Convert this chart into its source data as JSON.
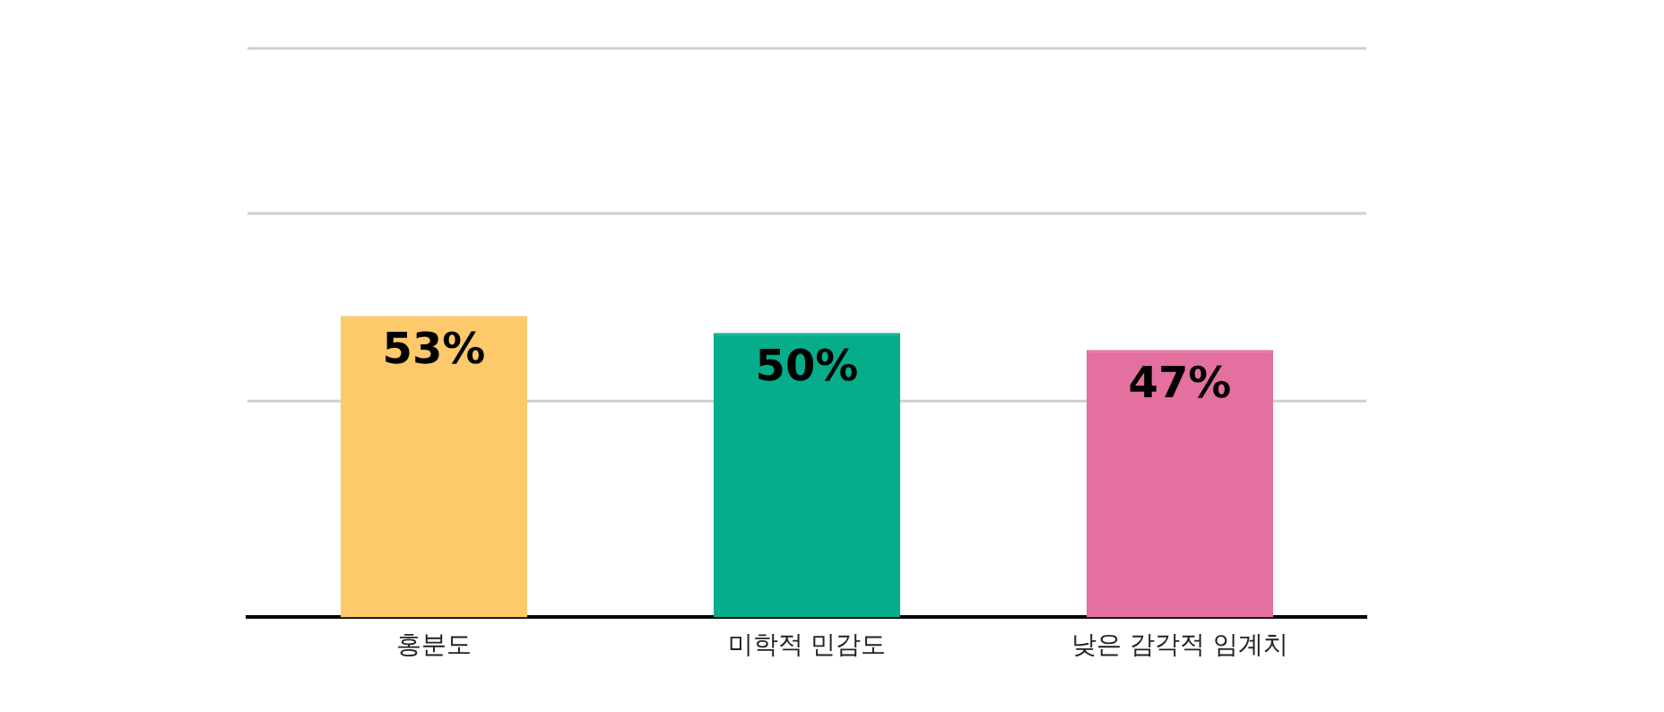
{
  "chart_data": {
    "type": "bar",
    "categories": [
      "홍분도",
      "미학적 민감도",
      "낮은 감각적 임계치"
    ],
    "values": [
      53,
      50,
      47
    ],
    "colors": [
      "#fdc96a",
      "#06ad8a",
      "#e4709f"
    ],
    "value_labels": [
      "53%",
      "50%",
      "47%"
    ],
    "ylim": [
      0,
      100
    ],
    "ref_lines": [
      {
        "axis": "y",
        "value": 38,
        "color": "#d0d0d0"
      },
      {
        "axis": "y",
        "value": 71,
        "color": "#d0d0d0"
      },
      {
        "axis": "y",
        "value": 100,
        "color": "#d0d0d0"
      }
    ],
    "legend": false,
    "tick_labels": "x"
  }
}
